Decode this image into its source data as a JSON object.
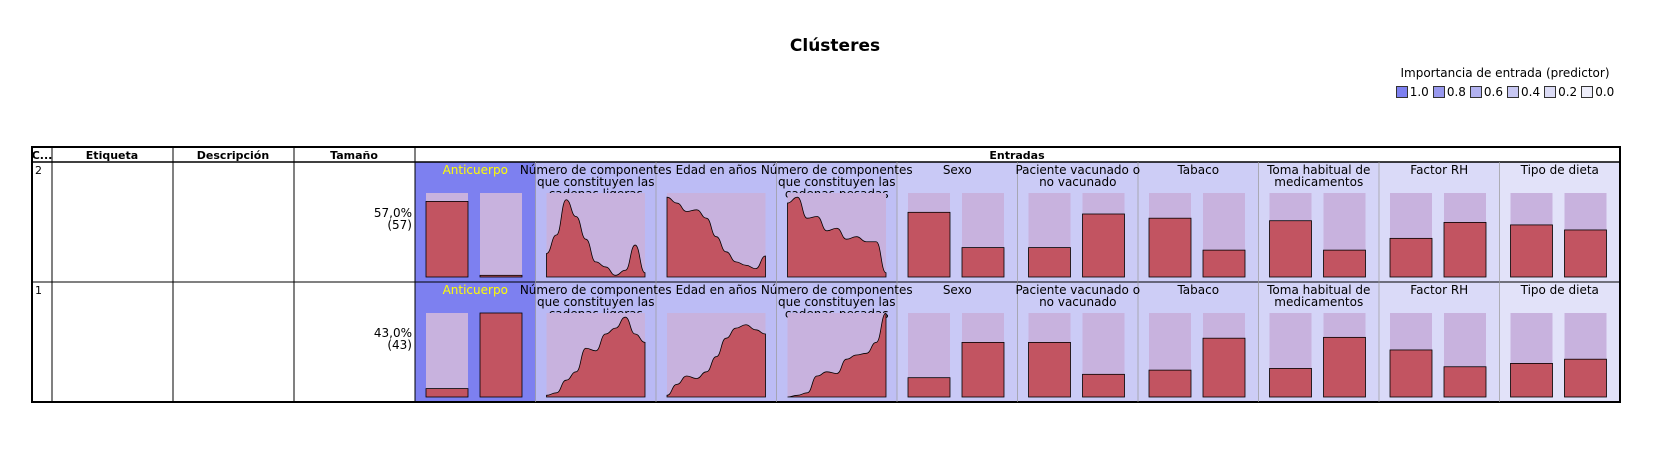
{
  "title": "Clústeres",
  "legend": {
    "title": "Importancia de entrada (predictor)",
    "items": [
      {
        "label": "1.0",
        "color": "#7d80f0"
      },
      {
        "label": "0.8",
        "color": "#9898ee"
      },
      {
        "label": "0.6",
        "color": "#b2b2f0"
      },
      {
        "label": "0.4",
        "color": "#c8c8f3"
      },
      {
        "label": "0.2",
        "color": "#dcdcf6"
      },
      {
        "label": "0.0",
        "color": "#eeeefa"
      }
    ]
  },
  "table": {
    "col_cluster": "C...",
    "col_label": "Etiqueta",
    "col_desc": "Descripción",
    "col_size": "Tamaño",
    "col_inputs": "Entradas"
  },
  "chart_data": {
    "type": "table",
    "colors": {
      "bar": "#c25461",
      "bar_background": "#c8b2de",
      "highlight_text": "#ffff00"
    },
    "inputs": [
      {
        "name": "Anticuerpo",
        "kind": "categorical",
        "importance": 1.0,
        "bg": "#7d80f0"
      },
      {
        "name": "Número de componentes que constituyen las cadenas ligeras",
        "kind": "continuous",
        "importance": 0.6,
        "bg": "#b9b9f5"
      },
      {
        "name": "Edad en años",
        "kind": "continuous",
        "importance": 0.6,
        "bg": "#bcbcf5"
      },
      {
        "name": "Número de componentes que constituyen las cadenas pesadas",
        "kind": "continuous",
        "importance": 0.6,
        "bg": "#bfbff5"
      },
      {
        "name": "Sexo",
        "kind": "categorical",
        "importance": 0.4,
        "bg": "#c9c9f6"
      },
      {
        "name": "Paciente vacunado o no vacunado",
        "kind": "categorical",
        "importance": 0.4,
        "bg": "#cbcbf6"
      },
      {
        "name": "Tabaco",
        "kind": "categorical",
        "importance": 0.4,
        "bg": "#cdcdf6"
      },
      {
        "name": "Toma habitual de medicamentos",
        "kind": "categorical",
        "importance": 0.3,
        "bg": "#d4d4f7"
      },
      {
        "name": "Factor RH",
        "kind": "categorical",
        "importance": 0.2,
        "bg": "#dadaf8"
      },
      {
        "name": "Tipo de dieta",
        "kind": "categorical",
        "importance": 0.1,
        "bg": "#e2e2f9"
      }
    ],
    "clusters": [
      {
        "id": "2",
        "size_pct": "57,0%",
        "size_n": "(57)",
        "cells": [
          [
            0.9,
            0.02
          ],
          [
            0.28,
            0.5,
            0.92,
            0.72,
            0.45,
            0.18,
            0.12,
            0.02,
            0.08,
            0.38,
            0.05
          ],
          [
            0.95,
            0.88,
            0.78,
            0.8,
            0.7,
            0.48,
            0.3,
            0.18,
            0.14,
            0.1,
            0.25
          ],
          [
            0.88,
            0.95,
            0.7,
            0.72,
            0.55,
            0.58,
            0.45,
            0.48,
            0.42,
            0.42,
            0.05
          ],
          [
            0.77,
            0.35
          ],
          [
            0.35,
            0.75
          ],
          [
            0.7,
            0.32
          ],
          [
            0.67,
            0.32
          ],
          [
            0.46,
            0.65
          ],
          [
            0.62,
            0.56
          ]
        ]
      },
      {
        "id": "1",
        "size_pct": "43,0%",
        "size_n": "(43)",
        "cells": [
          [
            0.1,
            1.0
          ],
          [
            0.02,
            0.05,
            0.2,
            0.3,
            0.58,
            0.55,
            0.75,
            0.82,
            0.95,
            0.75,
            0.65
          ],
          [
            0.02,
            0.15,
            0.25,
            0.22,
            0.3,
            0.48,
            0.7,
            0.82,
            0.86,
            0.8,
            0.75
          ],
          [
            0.0,
            0.02,
            0.05,
            0.25,
            0.3,
            0.28,
            0.45,
            0.5,
            0.52,
            0.65,
            1.0
          ],
          [
            0.23,
            0.65
          ],
          [
            0.65,
            0.27
          ],
          [
            0.32,
            0.7
          ],
          [
            0.34,
            0.71
          ],
          [
            0.56,
            0.36
          ],
          [
            0.4,
            0.45
          ]
        ]
      }
    ]
  }
}
